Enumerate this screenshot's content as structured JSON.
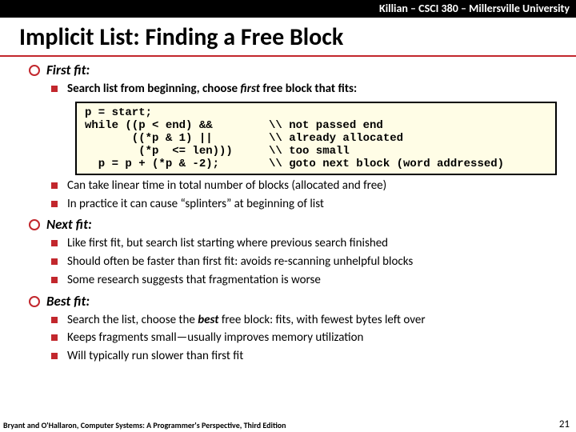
{
  "topbar": "Killian – CSCI 380 – Millersville University",
  "title": "Implicit List: Finding a Free Block",
  "sections": {
    "firstfit": {
      "heading": "First fit:",
      "b1_pre": "Search list from beginning, choose ",
      "b1_em": "first",
      "b1_post": " free block that fits:",
      "code_col1": "p = start;\nwhile ((p < end) &&\n       ((*p & 1) ||\n        (*p  <= len)))\n  p = p + (*p & -2);",
      "code_col2": "\n\\\\ not passed end\n\\\\ already allocated\n\\\\ too small\n\\\\ goto next block (word addressed)",
      "b2": "Can take linear time in total number of blocks (allocated and free)",
      "b3": "In practice it can cause “splinters” at beginning of list"
    },
    "nextfit": {
      "heading": "Next fit:",
      "b1": "Like first fit, but search list starting where previous search finished",
      "b2": "Should often be faster than first fit: avoids re-scanning unhelpful blocks",
      "b3": "Some research suggests that fragmentation is worse"
    },
    "bestfit": {
      "heading": "Best fit:",
      "b1_pre": "Search the list, choose the ",
      "b1_em": "best",
      "b1_post": " free block: fits, with fewest bytes left over",
      "b2": "Keeps fragments small—usually improves memory utilization",
      "b3": "Will typically run slower than first fit"
    }
  },
  "footer": "Bryant and O'Hallaron, Computer Systems: A Programmer's Perspective, Third Edition",
  "pagenum": "21"
}
